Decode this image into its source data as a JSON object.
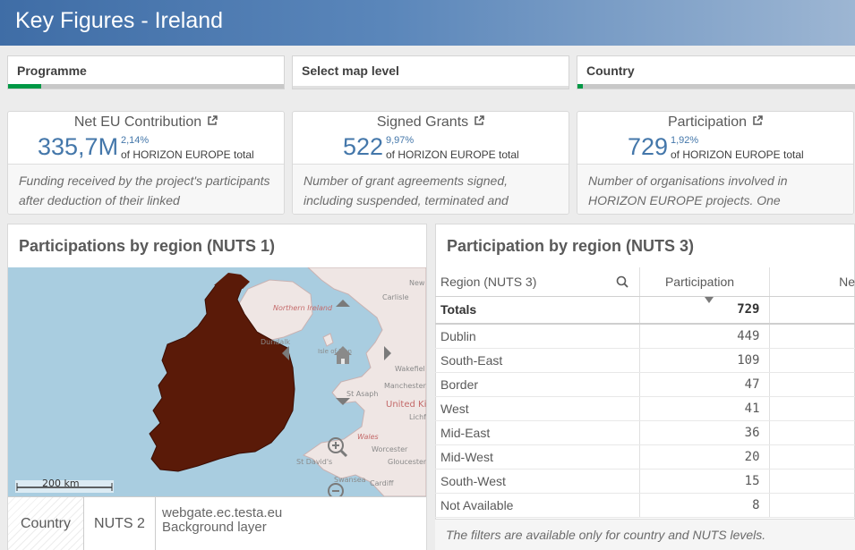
{
  "header": {
    "title": "Key Figures - Ireland"
  },
  "filters": [
    {
      "label": "Programme",
      "progress": 0.12
    },
    {
      "label": "Select map level",
      "progress": 0
    },
    {
      "label": "Country",
      "progress": 0.02
    }
  ],
  "kpis": [
    {
      "title": "Net EU Contribution",
      "value": "335,7M",
      "pct": "2,14%",
      "sub": "of HORIZON EUROPE total",
      "desc": "Funding received by the project's participants after deduction of their linked"
    },
    {
      "title": "Signed Grants",
      "value": "522",
      "pct": "9,97%",
      "sub": "of HORIZON EUROPE total",
      "desc": "Number of grant agreements signed, including suspended, terminated and"
    },
    {
      "title": "Participation",
      "value": "729",
      "pct": "1,92%",
      "sub": "of HORIZON EUROPE total",
      "desc": "Number of organisations involved in HORIZON EUROPE projects. One"
    }
  ],
  "map_panel": {
    "title": "Participations by region (NUTS 1)",
    "scale_label": "200 km",
    "labels": [
      "Northern Ireland",
      "New",
      "Carlisle",
      "Isle of Man",
      "Wakefiel",
      "Manchester",
      "St Asaph",
      "United Ki",
      "Lichf",
      "Wales",
      "Worcester",
      "Gloucester",
      "St David's",
      "Swansea",
      "Cardiff",
      "Dundalk"
    ],
    "footer": {
      "country": "Country",
      "nuts": "NUTS 2",
      "source": "webgate.ec.testa.eu",
      "layer": "Background layer"
    }
  },
  "table_panel": {
    "title": "Participation by region (NUTS 3)",
    "columns": [
      "Region (NUTS 3)",
      "Participation",
      "Ne"
    ],
    "totals": {
      "label": "Totals",
      "value": "729"
    },
    "rows": [
      {
        "region": "Dublin",
        "value": "449"
      },
      {
        "region": "South-East",
        "value": "109"
      },
      {
        "region": "Border",
        "value": "47"
      },
      {
        "region": "West",
        "value": "41"
      },
      {
        "region": "Mid-East",
        "value": "36"
      },
      {
        "region": "Mid-West",
        "value": "20"
      },
      {
        "region": "South-West",
        "value": "15"
      },
      {
        "region": "Not Available",
        "value": "8"
      }
    ],
    "footnote": "The filters are available only for country and NUTS levels."
  },
  "colors": {
    "accent": "#4477aa",
    "filter_fill": "#009845",
    "ireland": "#5a1a08",
    "sea": "#a9cde0"
  }
}
